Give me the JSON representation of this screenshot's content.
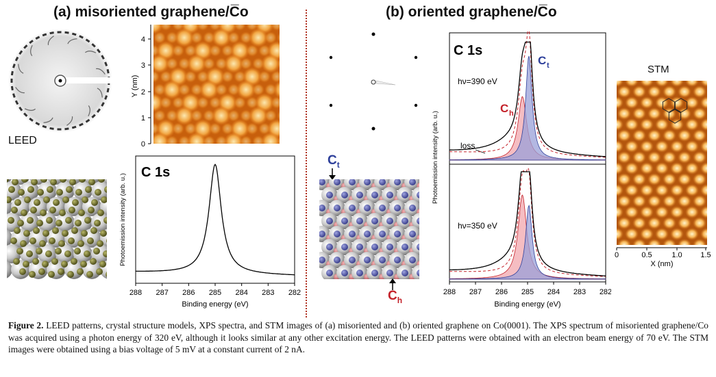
{
  "panel_a": {
    "title": "(a) misoriented graphene/C̅o",
    "leed_label": "LEED",
    "stm": {
      "ylabel": "Y (nm)",
      "yticks": [
        "4",
        "3",
        "2",
        "1",
        "0"
      ]
    },
    "xps": {
      "label": "C 1s"
    }
  },
  "panel_b": {
    "title": "(b) oriented graphene/C̅o",
    "xps_label": "C 1s",
    "ct_label": "C",
    "ct_sub": "t",
    "ch_label": "C",
    "ch_sub": "h",
    "hv_top": "hν=390 eV",
    "hv_bottom": "hν=350 eV",
    "loss_label": "loss",
    "model_ct": "C",
    "model_ct_sub": "t",
    "model_ch": "C",
    "model_ch_sub": "h",
    "stm": {
      "title": "STM",
      "xlabel": "X (nm)",
      "xticks": [
        "0",
        "0.5",
        "1.0",
        "1.5"
      ]
    }
  },
  "colors": {
    "ct": "#2d3f9a",
    "ch": "#c4222a",
    "stm_dark": "#8a3a05",
    "stm_light": "#fff0c0"
  },
  "chart_data": [
    {
      "type": "line",
      "name": "xps-misoriented",
      "xlabel": "Binding energy (eV)",
      "ylabel": "Photoemission intensity (arb. u.)",
      "xlim": [
        288,
        282
      ],
      "xticks": [
        "288",
        "287",
        "286",
        "285",
        "284",
        "283",
        "282"
      ],
      "peak": 285.0,
      "series": [
        {
          "x": [
            288,
            287,
            286,
            285.5,
            285.2,
            285.0,
            284.8,
            284.5,
            284,
            283,
            282
          ],
          "y": [
            0.03,
            0.05,
            0.09,
            0.22,
            0.65,
            1.0,
            0.68,
            0.25,
            0.09,
            0.04,
            0.02
          ]
        }
      ]
    },
    {
      "type": "line",
      "name": "xps-oriented",
      "xlabel": "Binding energy (eV)",
      "ylabel": "Photoemission intensity (arb. u.)",
      "xlim": [
        288,
        282
      ],
      "xticks": [
        "288",
        "287",
        "286",
        "285",
        "284",
        "283",
        "282"
      ],
      "spectra": [
        {
          "hv": "390 eV",
          "ch_peak": 285.2,
          "ct_peak": 284.95,
          "ch_amp": 0.55,
          "ct_amp": 0.9
        },
        {
          "hv": "350 eV",
          "ch_peak": 285.2,
          "ct_peak": 284.95,
          "ch_amp": 0.8,
          "ct_amp": 0.7
        }
      ]
    }
  ],
  "caption": {
    "label": "Figure 2.",
    "text": " LEED patterns, crystal structure models, XPS spectra, and STM images of (a) misoriented and (b) oriented graphene on Co(0001). The XPS spectrum of misoriented graphene/Co was acquired using a photon energy of 320 eV, although it looks similar at any other excitation energy. The LEED patterns were obtained with an electron beam energy of 70 eV. The STM images were obtained using a bias voltage of 5 mV at a constant current of 2 nA."
  }
}
